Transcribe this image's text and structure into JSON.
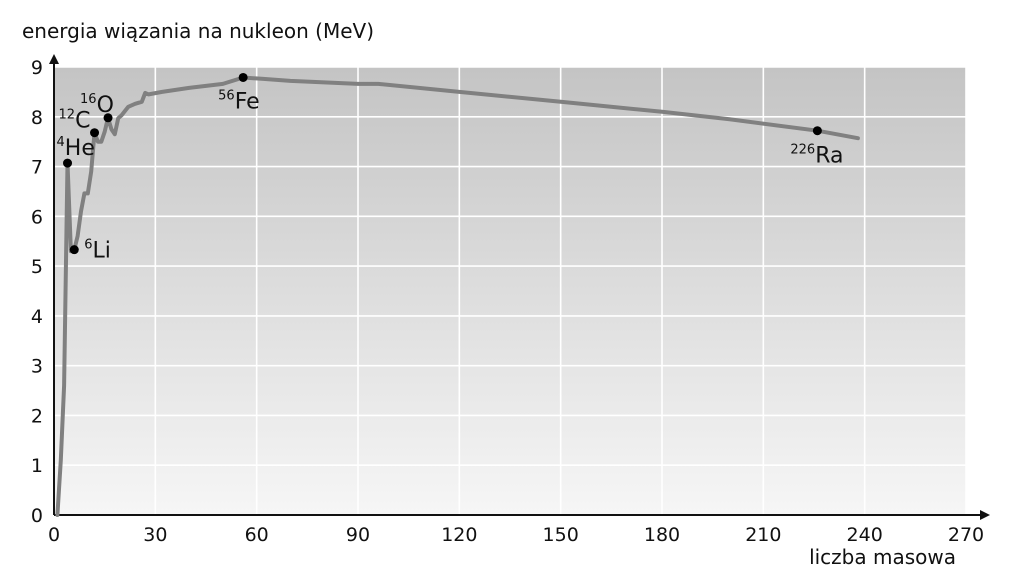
{
  "chart_data": {
    "type": "line",
    "xlabel": "liczba masowa",
    "ylabel": "energia wiązania na nukleon (MeV)",
    "xlim": [
      0,
      270
    ],
    "ylim": [
      0,
      9
    ],
    "x_ticks": [
      "0",
      "30",
      "60",
      "90",
      "120",
      "150",
      "180",
      "210",
      "240",
      "270"
    ],
    "y_ticks": [
      "0",
      "1",
      "2",
      "3",
      "4",
      "5",
      "6",
      "7",
      "8",
      "9"
    ],
    "grid": true,
    "series": [
      {
        "x": [
          1,
          2,
          3,
          4,
          5,
          6,
          7,
          8,
          9,
          10,
          11,
          12,
          13,
          14,
          15,
          16,
          17,
          18,
          19,
          20,
          22,
          24,
          26,
          27,
          28,
          32,
          36,
          40,
          45,
          50,
          56,
          62,
          70,
          80,
          90,
          96,
          120,
          150,
          180,
          200,
          226,
          238
        ],
        "y": [
          0,
          1.1,
          2.6,
          7.07,
          5.3,
          5.33,
          5.6,
          6.1,
          6.46,
          6.46,
          6.9,
          7.68,
          7.5,
          7.5,
          7.7,
          7.98,
          7.75,
          7.65,
          7.97,
          8.03,
          8.2,
          8.26,
          8.3,
          8.48,
          8.45,
          8.5,
          8.54,
          8.58,
          8.62,
          8.66,
          8.79,
          8.76,
          8.72,
          8.69,
          8.66,
          8.66,
          8.5,
          8.3,
          8.1,
          7.95,
          7.72,
          7.57
        ],
        "color": "#808080"
      }
    ],
    "points": [
      {
        "x": 4,
        "y": 7.07,
        "label_sup": "4",
        "label": "He"
      },
      {
        "x": 6,
        "y": 5.33,
        "label_sup": "6",
        "label": "Li"
      },
      {
        "x": 12,
        "y": 7.68,
        "label_sup": "12",
        "label": "C"
      },
      {
        "x": 16,
        "y": 7.98,
        "label_sup": "16",
        "label": "O"
      },
      {
        "x": 56,
        "y": 8.79,
        "label_sup": "56",
        "label": "Fe"
      },
      {
        "x": 226,
        "y": 7.72,
        "label_sup": "226",
        "label": "Ra"
      }
    ]
  }
}
